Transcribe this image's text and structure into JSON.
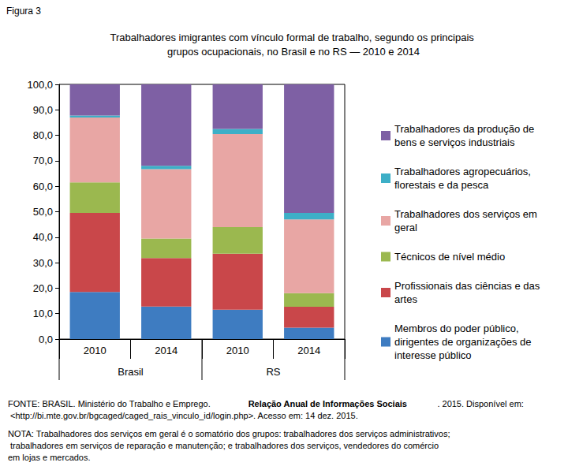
{
  "chart_data": {
    "type": "bar",
    "figure_label": "Figura 3",
    "title": "Trabalhadores imigrantes com vínculo formal de trabalho, segundo os principais grupos ocupacionais, no Brasil e no RS — 2010 e 2014",
    "categories": [
      "2010",
      "2014",
      "2010",
      "2014"
    ],
    "category_groups": [
      {
        "label": "Brasil",
        "count": 2
      },
      {
        "label": "RS",
        "count": 2
      }
    ],
    "stacked": true,
    "grid": false,
    "legend": "right",
    "ylim": [
      0,
      100
    ],
    "yticks": [
      {
        "value": 0,
        "label": "0,0"
      },
      {
        "value": 10,
        "label": "10,0"
      },
      {
        "value": 20,
        "label": "20,0"
      },
      {
        "value": 30,
        "label": "30,0"
      },
      {
        "value": 40,
        "label": "40,0"
      },
      {
        "value": 50,
        "label": "50,0"
      },
      {
        "value": 60,
        "label": "60,0"
      },
      {
        "value": 70,
        "label": "70,0"
      },
      {
        "value": 80,
        "label": "80,0"
      },
      {
        "value": 90,
        "label": "90,0"
      },
      {
        "value": 100,
        "label": "100,0"
      }
    ],
    "series": [
      {
        "name": "Membros do poder público, dirigentes de organizações de interesse público",
        "color": "#3e7cc1",
        "values": [
          18.5,
          12.8,
          11.5,
          4.5
        ]
      },
      {
        "name": "Profissionais das ciências e das artes",
        "color": "#c9474a",
        "values": [
          31.0,
          19.0,
          22.0,
          8.2
        ]
      },
      {
        "name": "Técnicos de nível médio",
        "color": "#9bb84f",
        "values": [
          12.0,
          7.7,
          10.5,
          5.3
        ]
      },
      {
        "name": "Trabalhadores dos serviços em geral",
        "color": "#e8a6a4",
        "values": [
          25.5,
          27.2,
          36.5,
          29.0
        ]
      },
      {
        "name": "Trabalhadores agropecuários, florestais e da pesca",
        "color": "#3dafc7",
        "values": [
          0.8,
          1.3,
          2.0,
          2.5
        ]
      },
      {
        "name": "Trabalhadores da produção de bens e serviços industriais",
        "color": "#7e60a4",
        "values": [
          12.2,
          32.0,
          17.5,
          50.5
        ]
      }
    ],
    "source": {
      "before": "FONTE: BRASIL. Ministério do Trabalho e Emprego. ",
      "bold": "Relação Anual de Informações Sociais",
      "after": ". 2015. Disponível em: <http://bi.mte.gov.br/bgcaged/caged_rais_vinculo_id/login.php>. Acesso em: 14 dez. 2015."
    },
    "note": "NOTA: Trabalhadores dos serviços em geral é o somatório dos grupos: trabalhadores dos serviços administrativos; trabalhadores em serviços de reparação e manutenção; e trabalhadores dos serviços, vendedores do comércio em lojas e mercados."
  }
}
